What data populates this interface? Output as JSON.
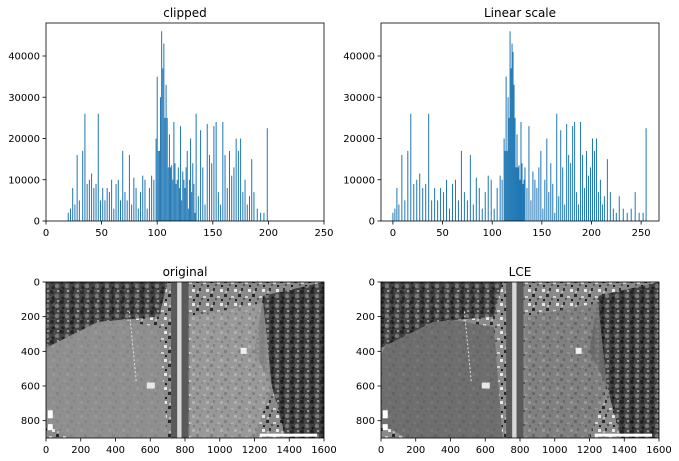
{
  "chart_data": [
    {
      "type": "bar",
      "title": "clipped",
      "xlim": [
        0,
        250
      ],
      "ylim": [
        0,
        48000
      ],
      "xticks": [
        "0",
        "50",
        "100",
        "150",
        "200",
        "250"
      ],
      "yticks": [
        "0",
        "10000",
        "20000",
        "30000",
        "40000"
      ],
      "color": "#1f77b4",
      "x": [
        20,
        22,
        24,
        26,
        28,
        30,
        33,
        35,
        37,
        39,
        41,
        43,
        45,
        47,
        49,
        51,
        53,
        55,
        57,
        59,
        61,
        63,
        65,
        67,
        69,
        71,
        73,
        75,
        77,
        79,
        81,
        83,
        85,
        87,
        89,
        91,
        93,
        95,
        97,
        99,
        100,
        101,
        102,
        103,
        104,
        105,
        106,
        107,
        108,
        109,
        110,
        111,
        112,
        113,
        114,
        115,
        116,
        117,
        118,
        119,
        120,
        121,
        122,
        123,
        124,
        125,
        126,
        127,
        128,
        129,
        130,
        131,
        132,
        133,
        134,
        135,
        137,
        139,
        141,
        143,
        145,
        147,
        149,
        151,
        153,
        155,
        157,
        159,
        161,
        163,
        165,
        167,
        169,
        171,
        173,
        175,
        177,
        179,
        181,
        183,
        185,
        187,
        190,
        193,
        196,
        199
      ],
      "values": [
        2000,
        3000,
        8000,
        4000,
        16000,
        5000,
        17000,
        26000,
        9000,
        10000,
        11500,
        8000,
        9000,
        26000,
        5000,
        8000,
        5000,
        8000,
        7000,
        10000,
        3000,
        9000,
        10000,
        5000,
        17000,
        7000,
        5000,
        16000,
        4000,
        10500,
        8000,
        3000,
        7000,
        11000,
        10000,
        3000,
        8000,
        11000,
        10000,
        20000,
        35000,
        17000,
        17000,
        30000,
        46000,
        37000,
        43000,
        25000,
        33000,
        25000,
        13000,
        21000,
        13000,
        13500,
        10000,
        24000,
        14000,
        9000,
        10000,
        13000,
        8000,
        23000,
        5000,
        12000,
        10000,
        8000,
        13000,
        17000,
        3000,
        10000,
        20000,
        7000,
        14000,
        9000,
        2000,
        26000,
        6000,
        22000,
        13000,
        4000,
        23500,
        16000,
        14000,
        23000,
        24000,
        7000,
        4000,
        24000,
        16000,
        8000,
        17000,
        11000,
        13000,
        20000,
        17000,
        20000,
        7000,
        10000,
        4000,
        6000,
        15000,
        7000,
        3000,
        2000,
        2000,
        22500
      ]
    },
    {
      "type": "bar",
      "title": "Linear scale",
      "xlim": [
        -12,
        268
      ],
      "ylim": [
        0,
        48000
      ],
      "xticks": [
        "0",
        "50",
        "100",
        "150",
        "200",
        "250"
      ],
      "yticks": [
        "0",
        "10000",
        "20000",
        "30000",
        "40000"
      ],
      "color": "#1f77b4",
      "x": [
        0,
        2,
        4,
        6,
        9,
        12,
        15,
        18,
        21,
        24,
        27,
        30,
        33,
        36,
        39,
        42,
        45,
        48,
        51,
        54,
        57,
        60,
        63,
        66,
        69,
        72,
        75,
        78,
        81,
        84,
        87,
        90,
        93,
        96,
        99,
        102,
        105,
        108,
        110,
        112,
        113,
        114,
        115,
        116,
        117,
        118,
        119,
        120,
        121,
        122,
        123,
        124,
        125,
        126,
        127,
        128,
        129,
        130,
        131,
        132,
        133,
        135,
        137,
        139,
        141,
        143,
        145,
        147,
        149,
        151,
        153,
        155,
        157,
        159,
        161,
        163,
        165,
        167,
        169,
        171,
        173,
        175,
        177,
        179,
        181,
        183,
        185,
        187,
        189,
        191,
        193,
        195,
        197,
        199,
        201,
        203,
        205,
        207,
        209,
        211,
        213,
        216,
        219,
        222,
        225,
        228,
        232,
        236,
        240,
        244,
        248,
        252,
        255
      ],
      "values": [
        2000,
        3000,
        8000,
        4000,
        16000,
        5000,
        17000,
        26000,
        9000,
        10000,
        11500,
        8000,
        9000,
        26000,
        5000,
        8000,
        5000,
        8000,
        7000,
        10000,
        3000,
        9000,
        10000,
        5000,
        17000,
        7000,
        5000,
        16000,
        4000,
        10500,
        8000,
        3000,
        7000,
        11000,
        10000,
        3000,
        8000,
        11000,
        10000,
        20000,
        17000,
        35000,
        17000,
        30000,
        25000,
        46000,
        37000,
        43000,
        41000,
        33000,
        25000,
        13000,
        21000,
        13000,
        13500,
        10000,
        24000,
        14000,
        9000,
        10000,
        13000,
        8000,
        23000,
        5000,
        12000,
        10000,
        8000,
        13000,
        17000,
        3000,
        10000,
        20000,
        7000,
        14000,
        9000,
        2000,
        26000,
        6000,
        22000,
        13000,
        4000,
        23500,
        16000,
        14000,
        23000,
        24000,
        7000,
        4000,
        24000,
        16000,
        8000,
        17000,
        11000,
        13000,
        20000,
        17000,
        20000,
        7000,
        10000,
        4000,
        6000,
        15000,
        7000,
        3000,
        2000,
        6000,
        3000,
        2000,
        3000,
        7000,
        2000,
        2000,
        22500
      ]
    },
    {
      "type": "image",
      "title": "original",
      "xlim": [
        0,
        1600
      ],
      "ylim": [
        900,
        0
      ],
      "xticks": [
        "0",
        "200",
        "400",
        "600",
        "800",
        "1000",
        "1200",
        "1400",
        "1600"
      ],
      "yticks": [
        "0",
        "200",
        "400",
        "600",
        "800"
      ],
      "tone": "original"
    },
    {
      "type": "image",
      "title": "LCE",
      "xlim": [
        0,
        1600
      ],
      "ylim": [
        900,
        0
      ],
      "xticks": [
        "0",
        "200",
        "400",
        "600",
        "800",
        "1000",
        "1200",
        "1400",
        "1600"
      ],
      "yticks": [
        "0",
        "200",
        "400",
        "600",
        "800"
      ],
      "tone": "lce"
    }
  ]
}
